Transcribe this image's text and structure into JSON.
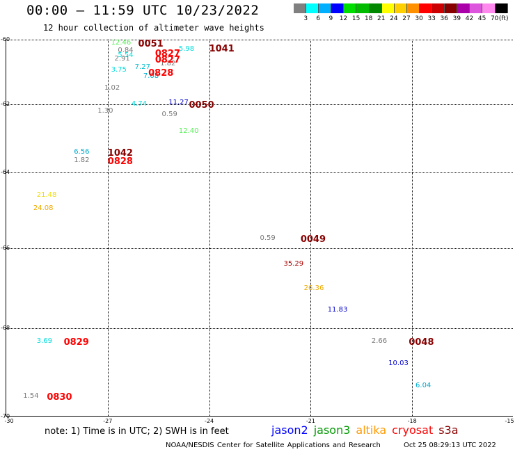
{
  "header": {
    "title": "00:00 – 11:59 UTC 10/23/2022",
    "subtitle": "12 hour collection of altimeter wave heights"
  },
  "color_scale": {
    "unit": "(ft)",
    "bins": [
      {
        "label": "3",
        "color": "#808080"
      },
      {
        "label": "6",
        "color": "#00ffff"
      },
      {
        "label": "9",
        "color": "#00b0ff"
      },
      {
        "label": "12",
        "color": "#0000ff"
      },
      {
        "label": "15",
        "color": "#00dd00"
      },
      {
        "label": "18",
        "color": "#00bb00"
      },
      {
        "label": "21",
        "color": "#008800"
      },
      {
        "label": "24",
        "color": "#ffff00"
      },
      {
        "label": "27",
        "color": "#ffd000"
      },
      {
        "label": "30",
        "color": "#ff9000"
      },
      {
        "label": "33",
        "color": "#ff0000"
      },
      {
        "label": "36",
        "color": "#cc0000"
      },
      {
        "label": "39",
        "color": "#880000"
      },
      {
        "label": "42",
        "color": "#aa00aa"
      },
      {
        "label": "45",
        "color": "#dd55dd"
      },
      {
        "label": "70",
        "color": "#ff88ee"
      },
      {
        "label": "",
        "color": "#000000"
      }
    ]
  },
  "map": {
    "lat_range": [
      -70,
      -60
    ],
    "lon_range": [
      -30,
      -15
    ],
    "lat_ticks": [
      {
        "v": -60,
        "label": "-60"
      },
      {
        "v": -62,
        "label": "-62"
      },
      {
        "v": -64,
        "label": "-64"
      },
      {
        "v": -66,
        "label": "-66"
      },
      {
        "v": -68,
        "label": "-68"
      },
      {
        "v": -70,
        "label": "-70"
      }
    ],
    "lon_ticks": [
      {
        "v": -30,
        "label": "-30"
      },
      {
        "v": -27,
        "label": "-27"
      },
      {
        "v": -24,
        "label": "-24"
      },
      {
        "v": -21,
        "label": "-21"
      },
      {
        "v": -18,
        "label": "-18"
      },
      {
        "v": -15,
        "label": "-15"
      }
    ]
  },
  "chart_data": {
    "type": "scatter",
    "x_axis": "longitude",
    "y_axis": "latitude",
    "xlim": [
      -30,
      -15
    ],
    "ylim": [
      -70,
      -60
    ],
    "swh_feet": [
      {
        "lon": -26.9,
        "lat": -60.1,
        "value": "12.46",
        "color": "#55ee55"
      },
      {
        "lon": -26.7,
        "lat": -60.35,
        "value": "0.84",
        "color": "#777777"
      },
      {
        "lon": -26.7,
        "lat": -60.5,
        "value": "5.54",
        "color": "#00dddd"
      },
      {
        "lon": -26.8,
        "lat": -60.6,
        "value": "2.91",
        "color": "#777777"
      },
      {
        "lon": -26.2,
        "lat": -60.85,
        "value": "7.27",
        "color": "#00bbcc"
      },
      {
        "lon": -26.9,
        "lat": -60.95,
        "value": "3.75",
        "color": "#00dddd"
      },
      {
        "lon": -25.45,
        "lat": -60.75,
        "value": "1.82",
        "color": "#777777"
      },
      {
        "lon": -25.95,
        "lat": -61.15,
        "value": "7.08",
        "color": "#00aacc"
      },
      {
        "lon": -24.9,
        "lat": -60.3,
        "value": "5.98",
        "color": "#00dddd"
      },
      {
        "lon": -27.1,
        "lat": -61.5,
        "value": "1.02",
        "color": "#777777"
      },
      {
        "lon": -26.3,
        "lat": -62.0,
        "value": "4.74",
        "color": "#00dddd"
      },
      {
        "lon": -25.2,
        "lat": -61.95,
        "value": "11.27",
        "color": "#0000cc"
      },
      {
        "lon": -27.3,
        "lat": -62.2,
        "value": "1.30",
        "color": "#777777"
      },
      {
        "lon": -25.4,
        "lat": -62.3,
        "value": "0.59",
        "color": "#777777"
      },
      {
        "lon": -24.9,
        "lat": -62.8,
        "value": "12.40",
        "color": "#55ee55"
      },
      {
        "lon": -28.0,
        "lat": -63.4,
        "value": "6.56",
        "color": "#00aacc"
      },
      {
        "lon": -28.0,
        "lat": -63.65,
        "value": "1.82",
        "color": "#777777"
      },
      {
        "lon": -29.1,
        "lat": -64.6,
        "value": "21.48",
        "color": "#eedd00"
      },
      {
        "lon": -29.2,
        "lat": -64.95,
        "value": "24.08",
        "color": "#eeaa00"
      },
      {
        "lon": -22.5,
        "lat": -65.75,
        "value": "0.59",
        "color": "#777777"
      },
      {
        "lon": -21.8,
        "lat": -66.4,
        "value": "35.29",
        "color": "#aa0000"
      },
      {
        "lon": -21.2,
        "lat": -67.0,
        "value": "26.36",
        "color": "#eeaa00"
      },
      {
        "lon": -20.5,
        "lat": -67.55,
        "value": "11.83",
        "color": "#0000cc"
      },
      {
        "lon": -29.1,
        "lat": -68.3,
        "value": "3.69",
        "color": "#00dddd"
      },
      {
        "lon": -19.2,
        "lat": -68.3,
        "value": "2.66",
        "color": "#777777"
      },
      {
        "lon": -18.7,
        "lat": -68.8,
        "value": "10.03",
        "color": "#0000cc"
      },
      {
        "lon": -17.9,
        "lat": -69.3,
        "value": "6.04",
        "color": "#00aacc"
      },
      {
        "lon": -29.5,
        "lat": -69.55,
        "value": "1.54",
        "color": "#777777"
      }
    ],
    "time_labels": [
      {
        "lon": -26.1,
        "lat": -60.1,
        "value": "0051",
        "color": "#880000"
      },
      {
        "lon": -25.6,
        "lat": -60.4,
        "value": "0827",
        "color": "#ff0000"
      },
      {
        "lon": -25.6,
        "lat": -60.6,
        "value": "0827",
        "color": "#ff0000"
      },
      {
        "lon": -25.8,
        "lat": -61.0,
        "value": "0828",
        "color": "#ff0000"
      },
      {
        "lon": -24.0,
        "lat": -60.25,
        "value": "1041",
        "color": "#880000"
      },
      {
        "lon": -24.6,
        "lat": -62.0,
        "value": "0050",
        "color": "#880000"
      },
      {
        "lon": -27.0,
        "lat": -63.4,
        "value": "1042",
        "color": "#880000"
      },
      {
        "lon": -27.0,
        "lat": -63.65,
        "value": "0828",
        "color": "#ff0000"
      },
      {
        "lon": -21.3,
        "lat": -65.75,
        "value": "0049",
        "color": "#880000"
      },
      {
        "lon": -28.3,
        "lat": -68.3,
        "value": "0829",
        "color": "#ff0000"
      },
      {
        "lon": -18.1,
        "lat": -68.3,
        "value": "0048",
        "color": "#880000"
      },
      {
        "lon": -28.8,
        "lat": -69.55,
        "value": "0830",
        "color": "#ff0000"
      }
    ]
  },
  "note": "note: 1) Time is in UTC; 2) SWH is in feet",
  "legend": [
    {
      "name": "jason2",
      "color": "#0000ff"
    },
    {
      "name": "jason3",
      "color": "#009900"
    },
    {
      "name": "altika",
      "color": "#ff9900"
    },
    {
      "name": "cryosat",
      "color": "#ff0000"
    },
    {
      "name": "s3a",
      "color": "#880000"
    }
  ],
  "footer": {
    "credit": "NOAA/NESDIS Center for Satellite Applications and Research",
    "timestamp": "Oct 25 08:29:13 UTC 2022"
  }
}
